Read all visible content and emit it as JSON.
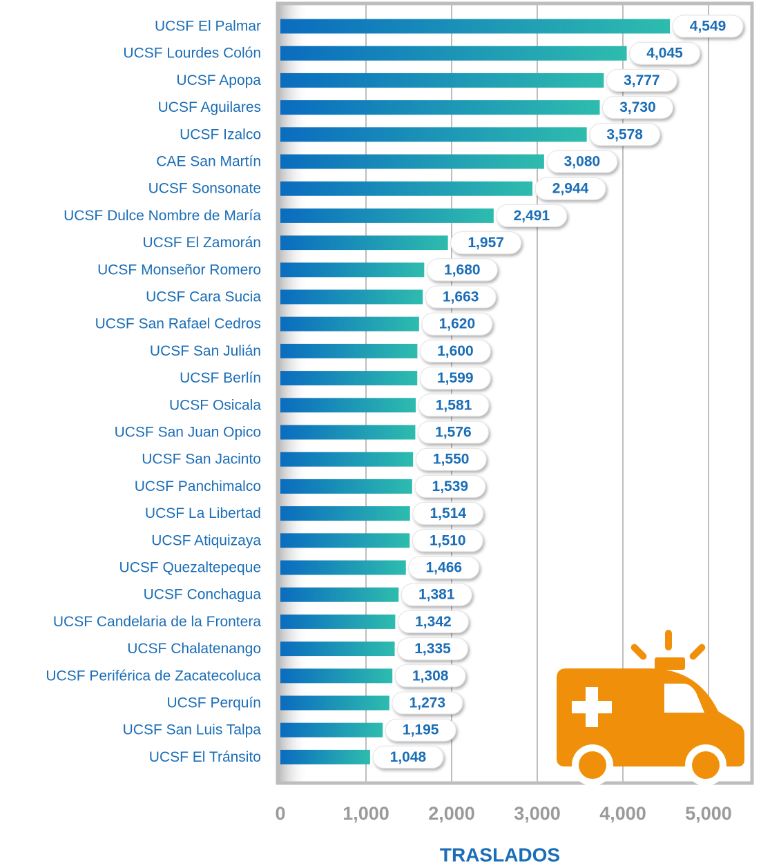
{
  "chart_data": {
    "type": "barh",
    "categories": [
      "UCSF El Palmar",
      "UCSF Lourdes Colón",
      "UCSF Apopa",
      "UCSF Aguilares",
      "UCSF Izalco",
      "CAE San Martín",
      "UCSF Sonsonate",
      "UCSF Dulce Nombre de María",
      "UCSF El Zamorán",
      "UCSF Monseñor Romero",
      "UCSF Cara Sucia",
      "UCSF San Rafael Cedros",
      "UCSF San Julián",
      "UCSF Berlín",
      "UCSF Osicala",
      "UCSF San Juan Opico",
      "UCSF San Jacinto",
      "UCSF Panchimalco",
      "UCSF La Libertad",
      "UCSF Atiquizaya",
      "UCSF Quezaltepeque",
      "UCSF Conchagua",
      "UCSF Candelaria de la Frontera",
      "UCSF Chalatenango",
      "UCSF Periférica de Zacatecoluca",
      "UCSF Perquín",
      "UCSF San Luis Talpa",
      "UCSF El Tránsito"
    ],
    "values": [
      4549,
      4045,
      3777,
      3730,
      3578,
      3080,
      2944,
      2491,
      1957,
      1680,
      1663,
      1620,
      1600,
      1599,
      1581,
      1576,
      1550,
      1539,
      1514,
      1510,
      1466,
      1381,
      1342,
      1335,
      1308,
      1273,
      1195,
      1048
    ],
    "value_labels": [
      "4,549",
      "4,045",
      "3,777",
      "3,730",
      "3,578",
      "3,080",
      "2,944",
      "2,491",
      "1,957",
      "1,680",
      "1,663",
      "1,620",
      "1,600",
      "1,599",
      "1,581",
      "1,576",
      "1,550",
      "1,539",
      "1,514",
      "1,510",
      "1,466",
      "1,381",
      "1,342",
      "1,335",
      "1,308",
      "1,273",
      "1,195",
      "1,048"
    ],
    "colors": [
      "#0a6cbf",
      "#2ebcae"
    ],
    "xlabel": "TRASLADOS",
    "xlim": [
      0,
      5500
    ],
    "xticks": [
      0,
      {
        "value": 1000,
        "label": "1,000"
      },
      {
        "value": 2000,
        "label": "2,000"
      },
      {
        "value": 3000,
        "label": "3,000"
      },
      {
        "value": 4000,
        "label": "4,000"
      },
      {
        "value": 5000,
        "label": "5,000"
      }
    ],
    "grid": true
  }
}
